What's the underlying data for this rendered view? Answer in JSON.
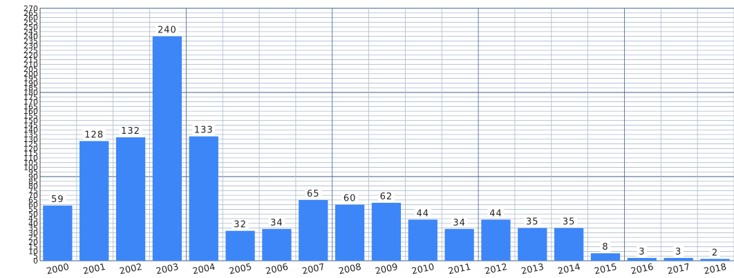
{
  "chart_data": {
    "type": "bar",
    "categories": [
      "2000",
      "2001",
      "2002",
      "2003",
      "2004",
      "2005",
      "2006",
      "2007",
      "2008",
      "2009",
      "2010",
      "2011",
      "2012",
      "2013",
      "2014",
      "2015",
      "2016",
      "2017",
      "2018"
    ],
    "values": [
      59,
      128,
      132,
      240,
      133,
      32,
      34,
      65,
      60,
      62,
      44,
      34,
      44,
      35,
      35,
      8,
      3,
      3,
      2
    ],
    "data_labels": [
      "59",
      "128",
      "132",
      "240",
      "133",
      "32",
      "34",
      "65",
      "60",
      "62",
      "44",
      "34",
      "44",
      "35",
      "35",
      "8",
      "3",
      "3",
      "2"
    ],
    "y_ticks": [
      0,
      5,
      10,
      15,
      20,
      25,
      30,
      35,
      40,
      45,
      50,
      55,
      60,
      65,
      70,
      75,
      80,
      85,
      90,
      95,
      100,
      105,
      110,
      115,
      120,
      125,
      130,
      135,
      140,
      145,
      150,
      155,
      160,
      165,
      170,
      175,
      180,
      185,
      190,
      195,
      200,
      205,
      210,
      215,
      220,
      225,
      230,
      235,
      240,
      245,
      250,
      255,
      260,
      265,
      270
    ],
    "ylim": [
      0,
      270
    ],
    "grid": true,
    "colors": {
      "bar": "#3d86f7",
      "grid_minor": "#aab9cc",
      "grid_major": "#3e5d86",
      "label_bg": "#ffffff"
    }
  }
}
